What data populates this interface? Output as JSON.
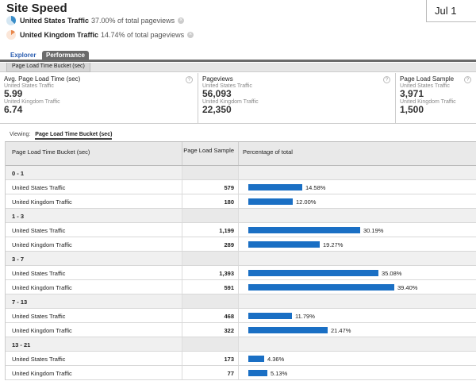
{
  "header": {
    "title": "Site Speed",
    "date_range": "Jul 1"
  },
  "segments": [
    {
      "name": "United States Traffic",
      "pct": "37.00% of total pageviews",
      "color": "#3a8dc8",
      "icon": "pie-chart-icon"
    },
    {
      "name": "United Kingdom Traffic",
      "pct": "14.74% of total pageviews",
      "color": "#e8874a",
      "icon": "pie-chart-icon"
    }
  ],
  "tabs": {
    "explorer": "Explorer",
    "performance": "Performance",
    "subtab": "Page Load Time Bucket (sec)"
  },
  "scorecards": [
    {
      "title": "Avg. Page Load Time (sec)",
      "us_label": "United States Traffic",
      "us_value": "5.99",
      "uk_label": "United Kingdom Traffic",
      "uk_value": "6.74"
    },
    {
      "title": "Pageviews",
      "us_label": "United States Traffic",
      "us_value": "56,093",
      "uk_label": "United Kingdom Traffic",
      "uk_value": "22,350"
    },
    {
      "title": "Page Load Sample",
      "us_label": "United States Traffic",
      "us_value": "3,971",
      "uk_label": "United Kingdom Traffic",
      "uk_value": "1,500"
    }
  ],
  "viewing": {
    "label": "Viewing:",
    "value": "Page Load Time Bucket (sec)"
  },
  "table": {
    "columns": [
      "Page Load Time Bucket (sec)",
      "Page Load Sample",
      "Percentage of total"
    ],
    "bar_color": "#1a6fc4",
    "groups": [
      {
        "bucket": "0 - 1",
        "rows": [
          {
            "segment": "United States Traffic",
            "sample": "579",
            "pct_label": "14.58%",
            "pct": 14.58
          },
          {
            "segment": "United Kingdom Traffic",
            "sample": "180",
            "pct_label": "12.00%",
            "pct": 12.0
          }
        ]
      },
      {
        "bucket": "1 - 3",
        "rows": [
          {
            "segment": "United States Traffic",
            "sample": "1,199",
            "pct_label": "30.19%",
            "pct": 30.19
          },
          {
            "segment": "United Kingdom Traffic",
            "sample": "289",
            "pct_label": "19.27%",
            "pct": 19.27
          }
        ]
      },
      {
        "bucket": "3 - 7",
        "rows": [
          {
            "segment": "United States Traffic",
            "sample": "1,393",
            "pct_label": "35.08%",
            "pct": 35.08
          },
          {
            "segment": "United Kingdom Traffic",
            "sample": "591",
            "pct_label": "39.40%",
            "pct": 39.4
          }
        ]
      },
      {
        "bucket": "7 - 13",
        "rows": [
          {
            "segment": "United States Traffic",
            "sample": "468",
            "pct_label": "11.79%",
            "pct": 11.79
          },
          {
            "segment": "United Kingdom Traffic",
            "sample": "322",
            "pct_label": "21.47%",
            "pct": 21.47
          }
        ]
      },
      {
        "bucket": "13 - 21",
        "rows": [
          {
            "segment": "United States Traffic",
            "sample": "173",
            "pct_label": "4.36%",
            "pct": 4.36
          },
          {
            "segment": "United Kingdom Traffic",
            "sample": "77",
            "pct_label": "5.13%",
            "pct": 5.13
          }
        ]
      }
    ]
  }
}
